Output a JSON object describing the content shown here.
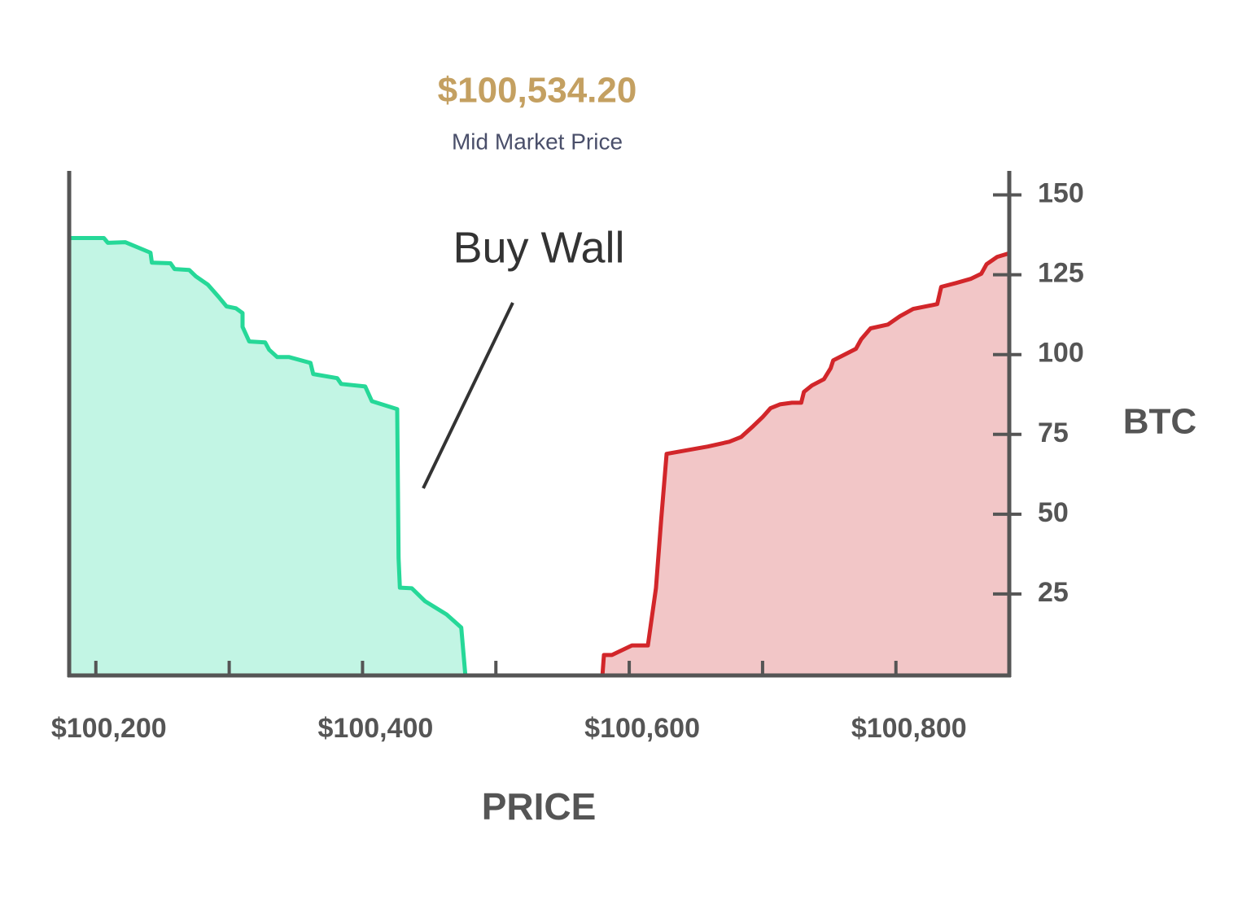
{
  "chart_data": {
    "type": "depth",
    "title": "$100,534.20",
    "subtitle": "Mid Market Price",
    "annotation": "Buy Wall",
    "x_label": "PRICE",
    "y_label": "BTC",
    "xlim": [
      100180,
      100885
    ],
    "ylim": [
      0,
      156
    ],
    "xticks": [
      {
        "value": 100200,
        "label": "$100,200"
      },
      {
        "value": 100400,
        "label": "$100,400"
      },
      {
        "value": 100600,
        "label": "$100,600"
      },
      {
        "value": 100800,
        "label": "$100,800"
      }
    ],
    "xminor_ticks": [
      100300,
      100500,
      100700
    ],
    "yticks": [
      25,
      50,
      75,
      100,
      125,
      150
    ],
    "series": [
      {
        "color": "#26d898",
        "fill": "#c2f5e4",
        "x": [
          100181,
          100206,
          100209,
          100222,
          100241,
          100242,
          100256,
          100259,
          100270,
          100275,
          100284,
          100292,
          100298,
          100305,
          100310,
          100310,
          100315,
          100327,
          100330,
          100336,
          100345,
          100361,
          100363,
          100381,
          100384,
          100402,
          100407,
          100426,
          100427,
          100428,
          100437,
          100447,
          100463,
          100474,
          100477
        ],
        "values": [
          136.5,
          136.5,
          135,
          135.2,
          131.9,
          128.8,
          128.6,
          126.8,
          126.5,
          124.5,
          121.9,
          118.1,
          115.1,
          114.5,
          113,
          108.7,
          104.1,
          103.8,
          101.5,
          99.2,
          99.2,
          97.4,
          93.9,
          92.6,
          90.8,
          90,
          85.4,
          82.9,
          36.2,
          27,
          26.8,
          22.7,
          18.6,
          14.5,
          0
        ]
      },
      {
        "color": "#d2262a",
        "fill": "#f2c6c7",
        "x": [
          100580,
          100581,
          100587,
          100602,
          100614,
          100620,
          100624,
          100628,
          100659,
          100675,
          100684,
          100693,
          100700,
          100706,
          100713,
          100722,
          100729,
          100731,
          100737,
          100746,
          100751,
          100753,
          100763,
          100770,
          100774,
          100781,
          100794,
          100803,
          100813,
          100831,
          100834,
          100845,
          100856,
          100864,
          100868,
          100876,
          100884
        ],
        "values": [
          0,
          5.9,
          5.9,
          8.9,
          8.9,
          26.8,
          48.5,
          68.9,
          71.2,
          72.7,
          74.2,
          77.6,
          80.4,
          83.2,
          84.4,
          84.9,
          84.9,
          88.3,
          90.3,
          92.3,
          95.7,
          98.2,
          100.3,
          101.8,
          104.8,
          108.2,
          109.4,
          112,
          114.3,
          115.8,
          121.2,
          122.4,
          123.7,
          125.3,
          128.3,
          130.6,
          131.6
        ]
      }
    ]
  }
}
